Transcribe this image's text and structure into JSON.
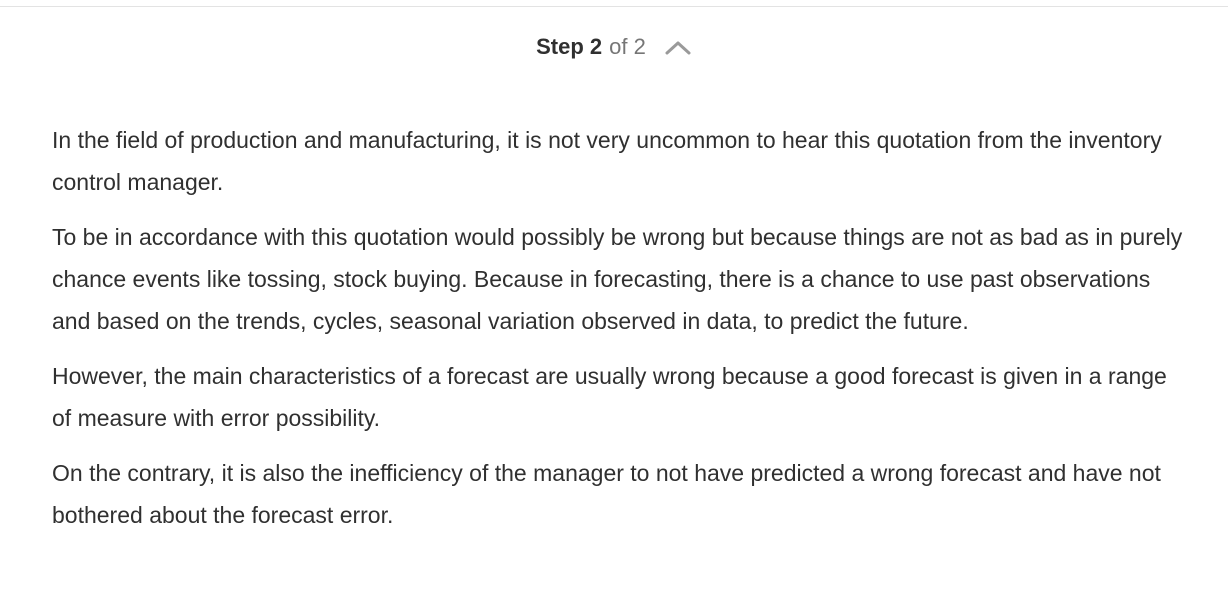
{
  "step_header": {
    "step_label": "Step 2",
    "of_text": "of 2",
    "toggle_icon": "chevron-up-icon"
  },
  "content": {
    "paragraphs": [
      "In the field of production and manufacturing, it is not very uncommon to hear this quotation from the inventory control manager.",
      "To be in accordance with this quotation would possibly be wrong but because things are not as bad as in purely chance events like tossing, stock buying. Because in forecasting, there is a chance to use past observations and based on the trends, cycles, seasonal variation observed in data, to predict the future.",
      "However, the main characteristics of a forecast are usually wrong because a good forecast is given in a range of measure with error possibility.",
      "On the contrary, it is also the inefficiency of the manager to not have predicted a wrong forecast and have not bothered about the forecast error."
    ]
  },
  "colors": {
    "text": "#303030",
    "muted_text": "#767676",
    "divider": "#e3e3e3",
    "icon": "#9a9a9a"
  }
}
